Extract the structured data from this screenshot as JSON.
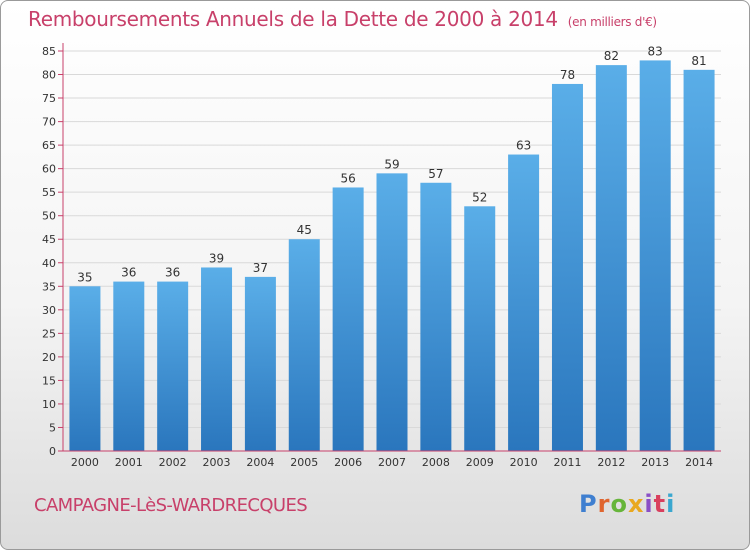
{
  "header": {
    "title": "Remboursements Annuels de la Dette de 2000 à 2014",
    "unit": "(en milliers d'€)"
  },
  "footer": {
    "commune": "CAMPAGNE-LèS-WARDRECQUES",
    "logo": {
      "p": "P",
      "r": "r",
      "o": "o",
      "x": "x",
      "i": "i",
      "t": "t",
      "i2": "i"
    }
  },
  "colors": {
    "title": "#c8406a",
    "bar_top": "#5aaee8",
    "bar_bottom": "#2a76bd",
    "axis": "#c8406a",
    "grid": "#d9d9d9"
  },
  "chart_data": {
    "type": "bar",
    "title": "Remboursements Annuels de la Dette de 2000 à 2014",
    "xlabel": "",
    "ylabel": "",
    "categories": [
      "2000",
      "2001",
      "2002",
      "2003",
      "2004",
      "2005",
      "2006",
      "2007",
      "2008",
      "2009",
      "2010",
      "2011",
      "2012",
      "2013",
      "2014"
    ],
    "values": [
      35,
      36,
      36,
      39,
      37,
      45,
      56,
      59,
      57,
      52,
      63,
      78,
      82,
      83,
      81
    ],
    "ylim": [
      0,
      85
    ],
    "yticks": [
      0,
      5,
      10,
      15,
      20,
      25,
      30,
      35,
      40,
      45,
      50,
      55,
      60,
      65,
      70,
      75,
      80,
      85
    ],
    "grid": true,
    "legend": "none"
  }
}
